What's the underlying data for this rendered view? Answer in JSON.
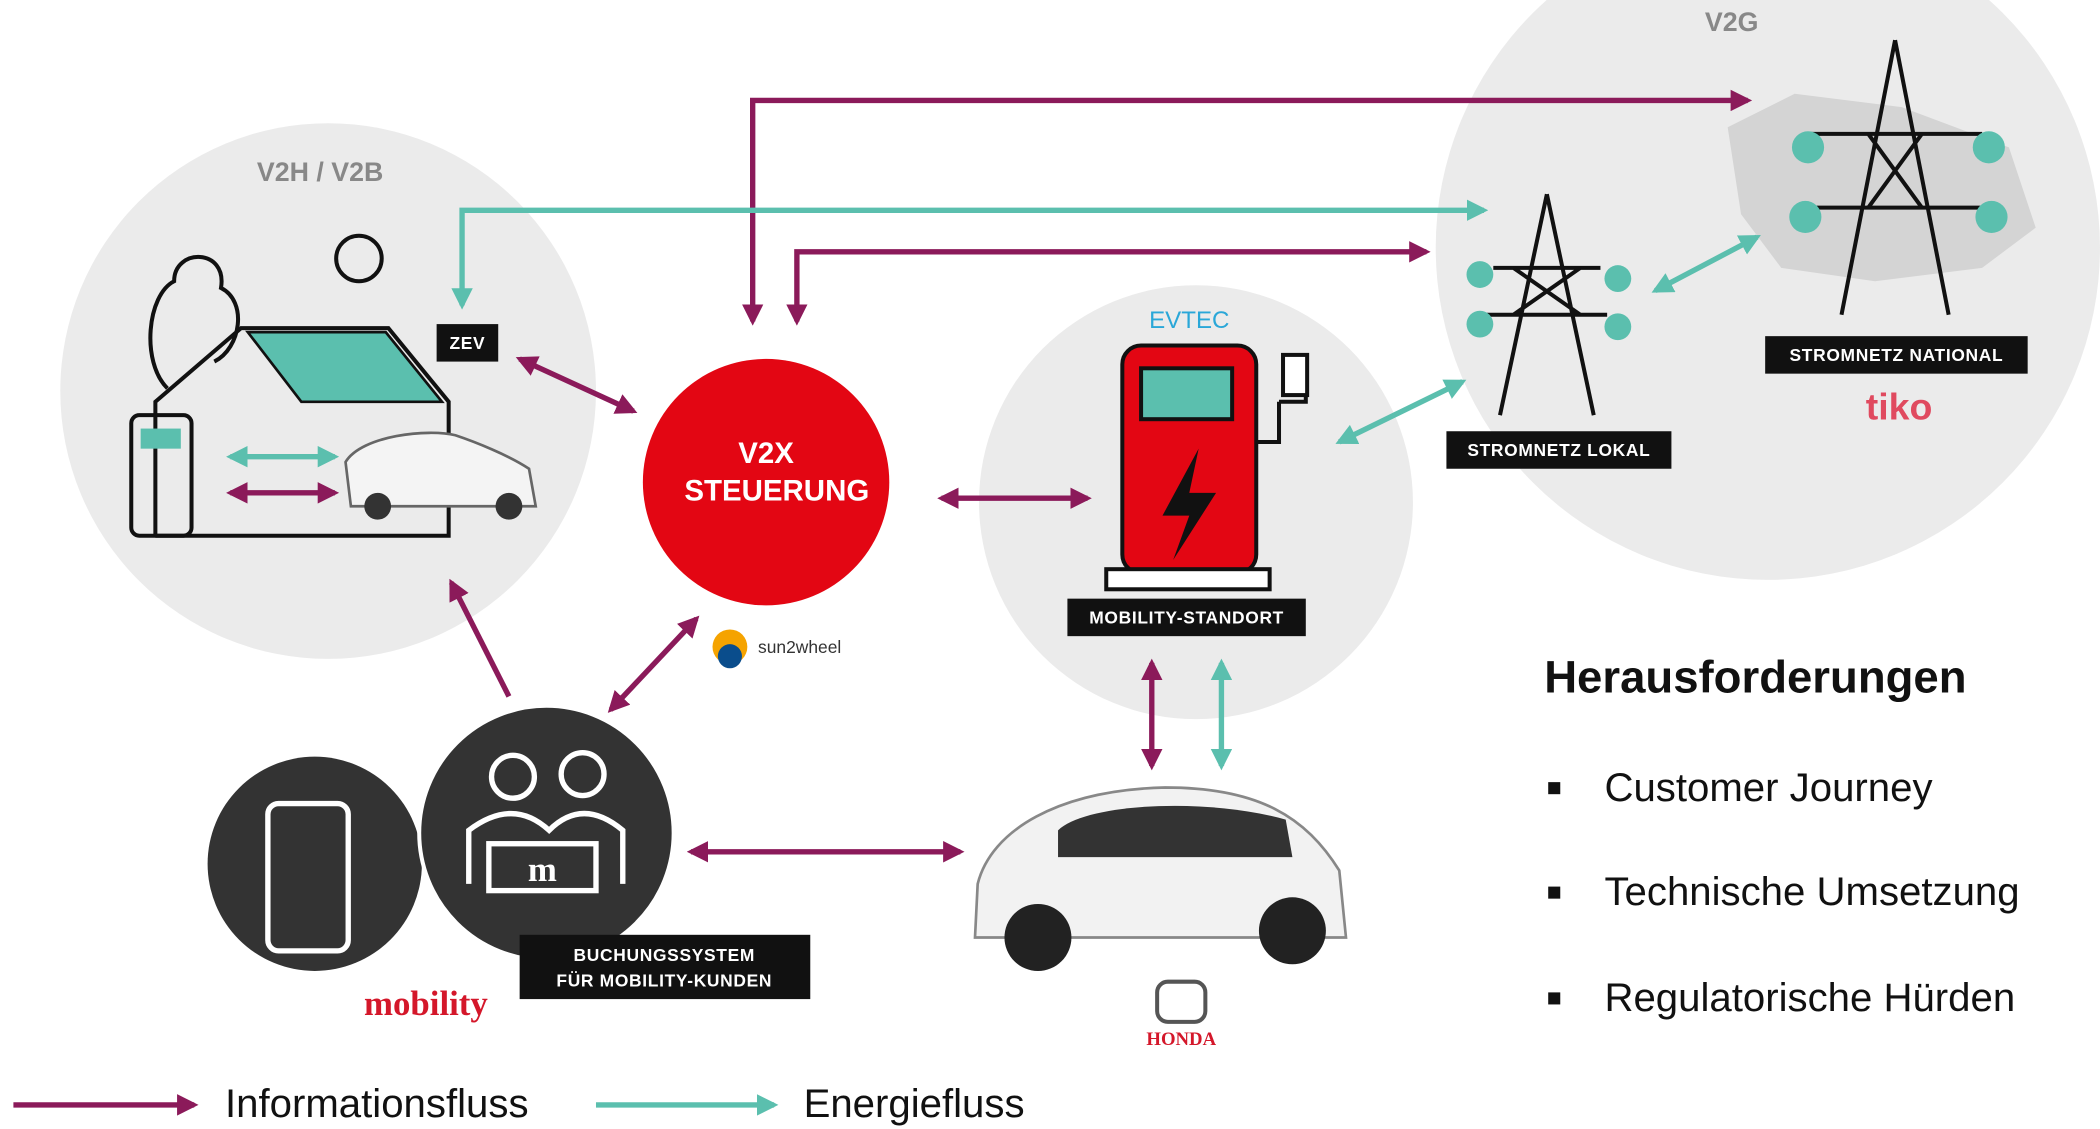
{
  "zones": {
    "v2g": "V2G",
    "v2h": "V2H / V2B"
  },
  "nodes": {
    "zev": "ZEV",
    "controller_line1": "V2X",
    "controller_line2": "STEUERUNG",
    "controller_brand": "sun2wheel",
    "station_brand": "EVTEC",
    "station": "MOBILITY-STANDORT",
    "grid_local": "STROMNETZ LOKAL",
    "grid_national": "STROMNETZ NATIONAL",
    "grid_brand": "tiko",
    "booking_line1": "BUCHUNGSSYSTEM",
    "booking_line2": "FÜR MOBILITY-KUNDEN",
    "booking_brand": "mobility",
    "car_brand": "HONDA"
  },
  "challenges": {
    "title": "Herausforderungen",
    "items": [
      "Customer Journey",
      "Technische Umsetzung",
      "Regulatorische Hürden"
    ]
  },
  "legend": {
    "info": "Informationsfluss",
    "energy": "Energiefluss"
  }
}
